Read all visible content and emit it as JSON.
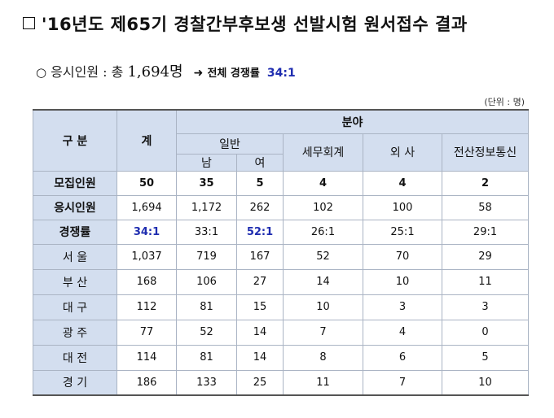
{
  "title": "□ '16년도 제65기 경찰간부후보생 선발시험 원서접수 결과",
  "title_text": "'16년도 제65기 경찰간부후보생 선발시험 원서접수 결과",
  "subtitle": {
    "bullet": "○",
    "label": "응시인원 : 총",
    "count": "1,694명",
    "arrow": "➜",
    "ratio_label": "전체 경쟁률",
    "ratio_value": "34:1"
  },
  "unit": "(단위 : 명)",
  "table": {
    "header": {
      "division": "구 분",
      "total": "계",
      "field": "분야",
      "general": "일반",
      "male": "남",
      "female": "여",
      "tax": "세무회계",
      "foreign": "외 사",
      "it": "전산정보통신"
    },
    "rows": [
      {
        "label": "모집인원",
        "values": [
          "50",
          "35",
          "5",
          "4",
          "4",
          "2"
        ]
      },
      {
        "label": "응시인원",
        "values": [
          "1,694",
          "1,172",
          "262",
          "102",
          "100",
          "58"
        ]
      },
      {
        "label": "경쟁률",
        "values": [
          "34:1",
          "33:1",
          "52:1",
          "26:1",
          "25:1",
          "29:1"
        ]
      },
      {
        "label": "서 울",
        "values": [
          "1,037",
          "719",
          "167",
          "52",
          "70",
          "29"
        ]
      },
      {
        "label": "부 산",
        "values": [
          "168",
          "106",
          "27",
          "14",
          "10",
          "11"
        ]
      },
      {
        "label": "대 구",
        "values": [
          "112",
          "81",
          "15",
          "10",
          "3",
          "3"
        ]
      },
      {
        "label": "광 주",
        "values": [
          "77",
          "52",
          "14",
          "7",
          "4",
          "0"
        ]
      },
      {
        "label": "대 전",
        "values": [
          "114",
          "81",
          "14",
          "8",
          "6",
          "5"
        ]
      },
      {
        "label": "경 기",
        "values": [
          "186",
          "133",
          "25",
          "11",
          "7",
          "10"
        ]
      }
    ]
  },
  "colors": {
    "header_bg": "#d3deef",
    "highlight": "#1f2db0",
    "border": "#aab4c4"
  }
}
